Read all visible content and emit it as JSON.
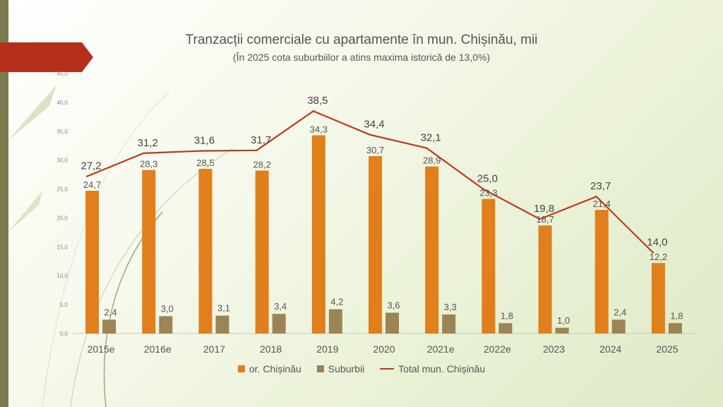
{
  "chart_data": {
    "type": "bar",
    "title": "Tranzacții comerciale cu apartamente în mun. Chișinău, mii",
    "subtitle": "(În 2025 cota suburbiilor a atins maxima istorică de 13,0%)",
    "categories": [
      "2015e",
      "2016e",
      "2017",
      "2018",
      "2019",
      "2020",
      "2021e",
      "2022e",
      "2023",
      "2024",
      "2025"
    ],
    "series": [
      {
        "name": "or. Chișinău",
        "type": "bar",
        "color": "#e07f1c",
        "values": [
          24.7,
          28.3,
          28.5,
          28.2,
          34.3,
          30.7,
          28.9,
          23.3,
          18.7,
          21.4,
          12.2
        ],
        "labels": [
          "24,7",
          "28,3",
          "28,5",
          "28,2",
          "34,3",
          "30,7",
          "28,9",
          "23,3",
          "18,7",
          "21,4",
          "12,2"
        ]
      },
      {
        "name": "Suburbii",
        "type": "bar",
        "color": "#9c8455",
        "values": [
          2.4,
          3.0,
          3.1,
          3.4,
          4.2,
          3.6,
          3.3,
          1.8,
          1.0,
          2.4,
          1.8
        ],
        "labels": [
          "2,4",
          "3,0",
          "3,1",
          "3,4",
          "4,2",
          "3,6",
          "3,3",
          "1,8",
          "1,0",
          "2,4",
          "1,8"
        ]
      },
      {
        "name": "Total mun. Chișinău",
        "type": "line",
        "color": "#c0391b",
        "values": [
          27.2,
          31.2,
          31.6,
          31.7,
          38.5,
          34.4,
          32.1,
          25.0,
          19.8,
          23.7,
          14.0
        ],
        "labels": [
          "27,2",
          "31,2",
          "31,6",
          "31,7",
          "38,5",
          "34,4",
          "32,1",
          "25,0",
          "19,8",
          "23,7",
          "14,0"
        ]
      }
    ],
    "ylim": [
      0,
      45
    ],
    "yticks": [
      "0,0",
      "5,0",
      "10,0",
      "15,0",
      "20,0",
      "25,0",
      "30,0",
      "35,0",
      "40,0",
      "45,0"
    ],
    "grid": false,
    "legend": "bottom"
  }
}
